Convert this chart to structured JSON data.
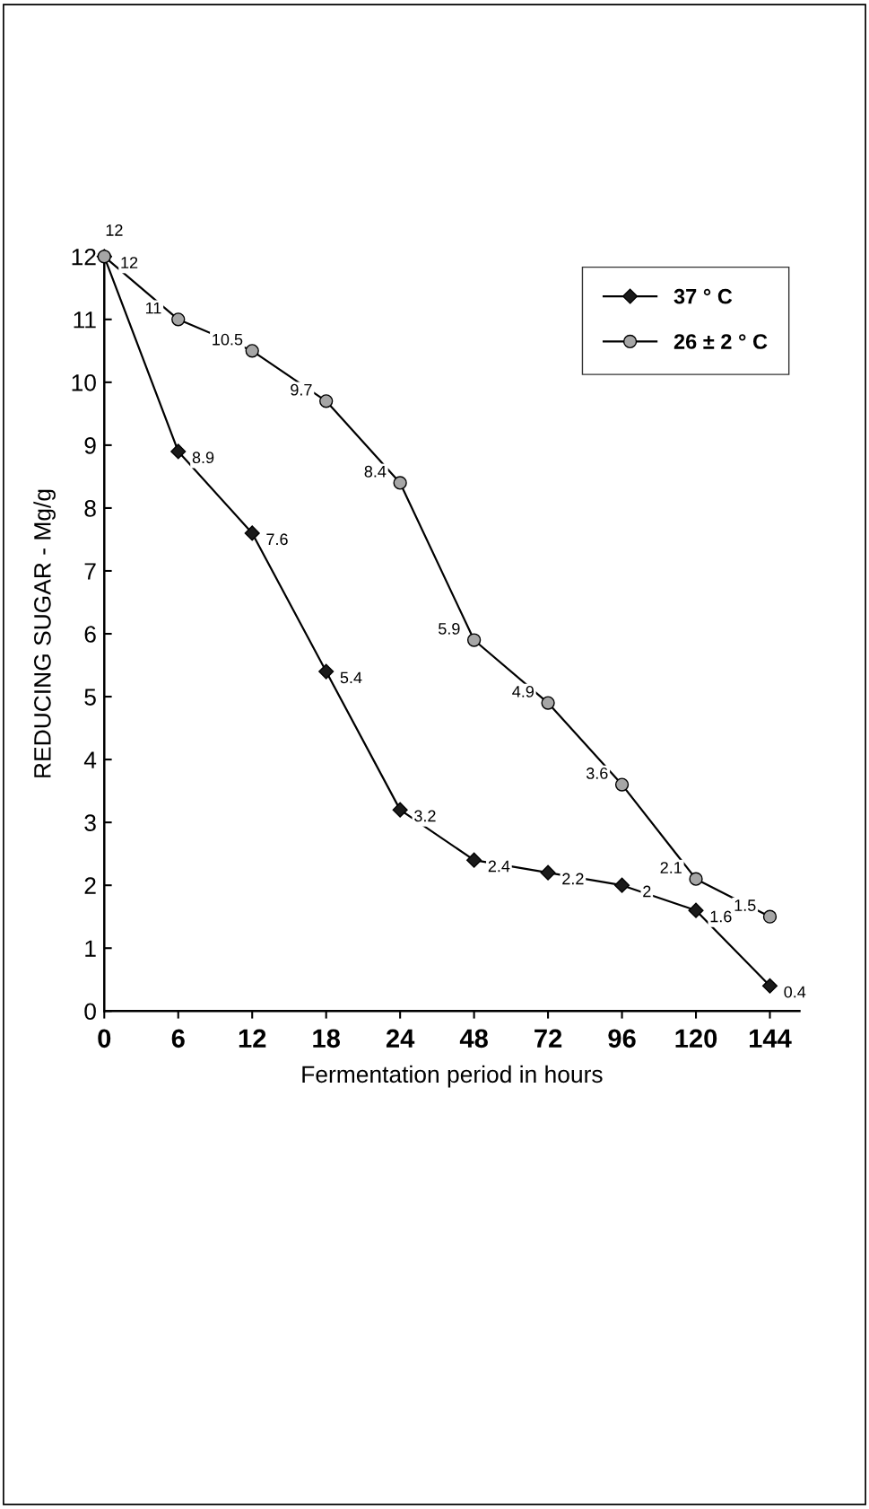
{
  "chart_data": {
    "type": "line",
    "xlabel": "Fermentation period in hours",
    "ylabel": "REDUCING SUGAR - Mg/g",
    "categories": [
      "0",
      "6",
      "12",
      "18",
      "24",
      "48",
      "72",
      "96",
      "120",
      "144"
    ],
    "series": [
      {
        "name": "37 ° C",
        "color": "#1a1a1a",
        "marker": "diamond",
        "values": [
          12,
          8.9,
          7.6,
          5.4,
          3.2,
          2.4,
          2.2,
          2,
          1.6,
          0.4
        ]
      },
      {
        "name": "26 ± 2 ° C",
        "color": "#a6a6a6",
        "marker": "circle",
        "values": [
          12,
          11,
          10.5,
          9.7,
          8.4,
          5.9,
          4.9,
          3.6,
          2.1,
          1.5
        ]
      }
    ],
    "ylim": [
      0,
      12
    ],
    "yticks": [
      0,
      1,
      2,
      3,
      4,
      5,
      6,
      7,
      8,
      9,
      10,
      11,
      12
    ],
    "data_labels": true,
    "legend": "top right",
    "grid": false
  }
}
